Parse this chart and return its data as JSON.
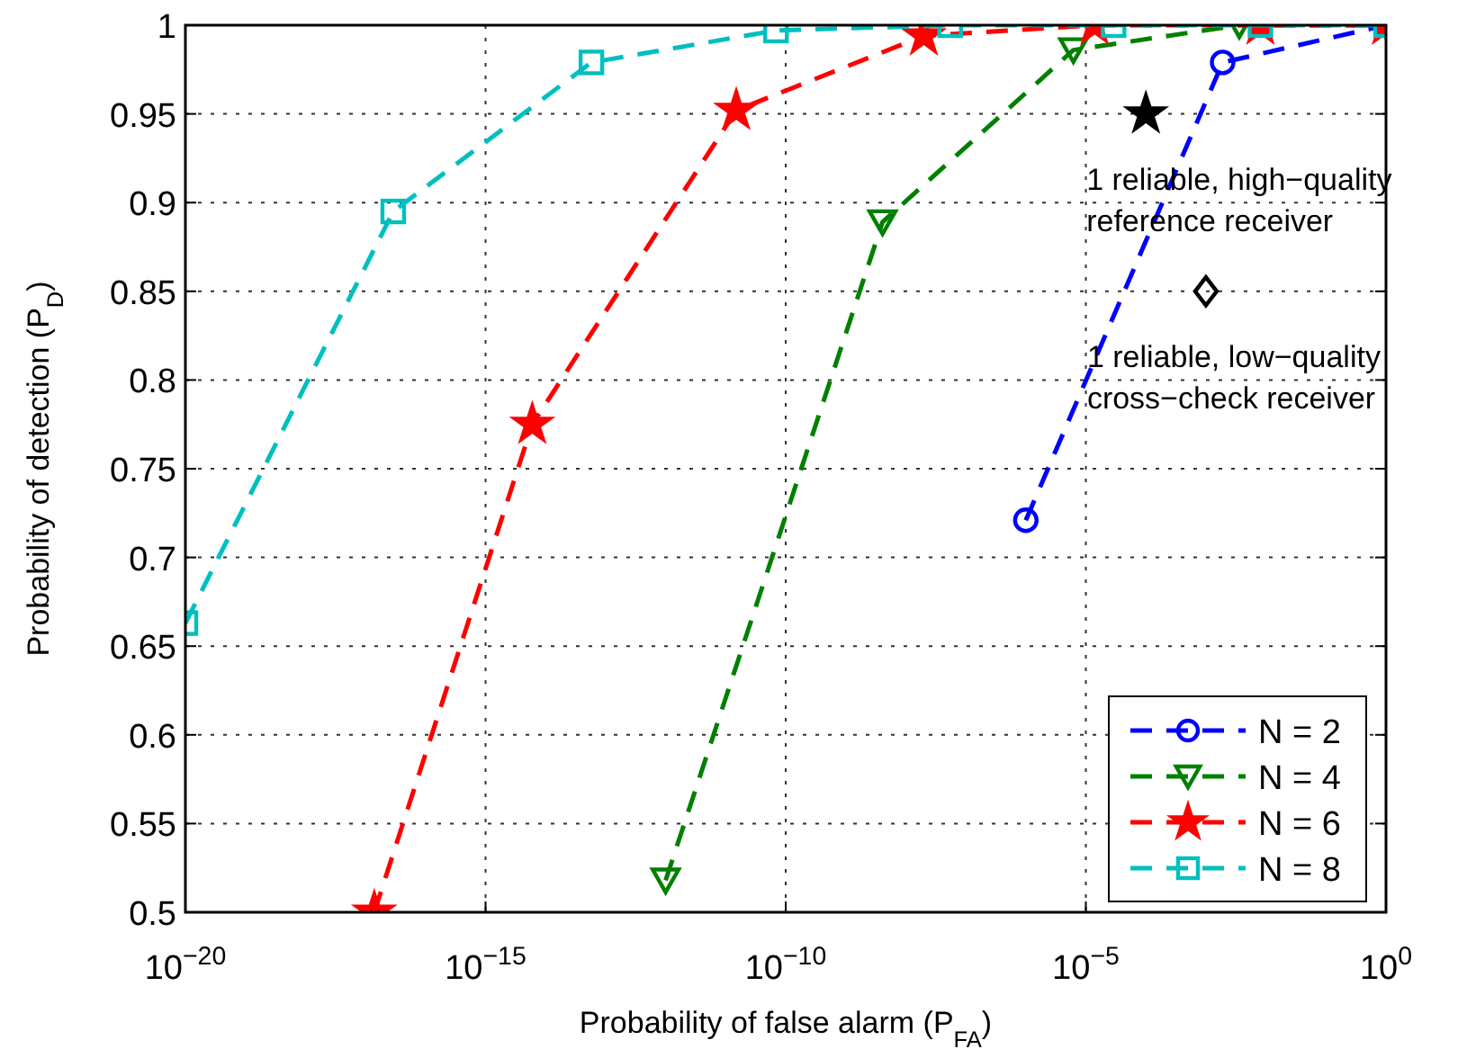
{
  "chart_data": {
    "type": "line",
    "xlabel": "Probability of false alarm (P$_{FA}$)",
    "ylabel": "Probability of detection (P$_{D}$)",
    "log": "x",
    "xlim": [
      1e-20,
      1
    ],
    "ylim": [
      0.5,
      1
    ],
    "xticks": [
      {
        "value": 1e-20,
        "label": "10$^{−20}$"
      },
      {
        "value": 1e-15,
        "label": "10$^{−15}$"
      },
      {
        "value": 1e-10,
        "label": "10$^{−10}$"
      },
      {
        "value": 1e-05,
        "label": "10$^{−5}$"
      },
      {
        "value": 1,
        "label": "10$^{0}$"
      }
    ],
    "yticks": [
      0.5,
      0.55,
      0.6,
      0.65,
      0.7,
      0.75,
      0.8,
      0.85,
      0.9,
      0.95,
      1
    ],
    "grid": true,
    "legend": "bottom right",
    "line_style": "dashed",
    "series": [
      {
        "name": "N = 2",
        "color": "#0000ff",
        "marker": "circle",
        "x": [
          1e-06,
          0.0019,
          1
        ],
        "values": [
          0.721,
          0.979,
          1
        ]
      },
      {
        "name": "N = 4",
        "color": "#008000",
        "marker": "triangle",
        "x": [
          1e-12,
          4.1e-09,
          6.2e-06,
          0.0036,
          1
        ],
        "values": [
          0.518,
          0.889,
          0.986,
          1,
          1
        ]
      },
      {
        "name": "N = 6",
        "color": "#ff0000",
        "marker": "star",
        "x": [
          1.4e-17,
          6e-15,
          1.5e-11,
          2e-08,
          1.4e-05,
          0.0081,
          1
        ],
        "values": [
          0.5,
          0.775,
          0.952,
          0.994,
          1,
          1,
          1
        ]
      },
      {
        "name": "N = 8",
        "color": "#00bfbf",
        "marker": "square",
        "x": [
          1e-20,
          2.9e-17,
          5.8e-14,
          6.9e-11,
          5.5e-08,
          2.9e-05,
          0.0081,
          1
        ],
        "values": [
          0.663,
          0.895,
          0.979,
          0.997,
          1,
          1,
          1,
          1
        ]
      },
      {
        "type": "scatter",
        "color": "#000000",
        "marker": "star",
        "x": [
          0.0001
        ],
        "values": [
          0.95
        ]
      },
      {
        "type": "scatter",
        "color": "#000000",
        "marker": "diamond",
        "x": [
          0.001
        ],
        "values": [
          0.85
        ]
      }
    ],
    "annotations": [
      {
        "text": "1 reliable, high−quality reference receiver",
        "x": 0.0001,
        "y": 0.95
      },
      {
        "text": "1 reliable, low−quality cross−check receiver",
        "x": 0.001,
        "y": 0.85
      }
    ]
  }
}
